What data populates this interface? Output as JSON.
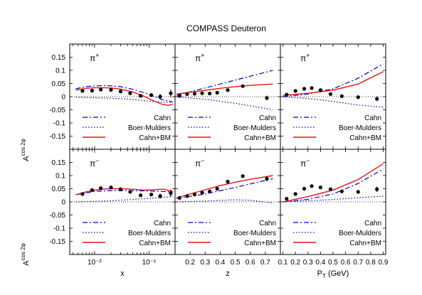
{
  "title": "COMPASS Deuteron",
  "y_axis_label": {
    "base": "A",
    "sup": "cos 2φ"
  },
  "legend": [
    {
      "name": "Cahn",
      "color": "#0000cc",
      "dash": "dashdot"
    },
    {
      "name": "Boer-Mulders",
      "color": "#0000cc",
      "dash": "dot"
    },
    {
      "name": "Cahn+BM",
      "color": "#ee1111",
      "dash": "solid"
    }
  ],
  "chart_data": [
    {
      "type": "line",
      "row": 0,
      "col": 0,
      "hadron": "π+",
      "xlabel": "",
      "xscale": "log",
      "xlim": [
        0.0035,
        0.3
      ],
      "ylim": [
        -0.2,
        0.2
      ],
      "yticks": [
        "0.15",
        "0.1",
        "0.05",
        "0",
        "-0.05",
        "-0.1",
        "-0.15"
      ],
      "points": [
        {
          "x": 0.006,
          "y": 0.022,
          "err": 0.006
        },
        {
          "x": 0.009,
          "y": 0.023,
          "err": 0.005
        },
        {
          "x": 0.013,
          "y": 0.027,
          "err": 0.005
        },
        {
          "x": 0.02,
          "y": 0.026,
          "err": 0.005
        },
        {
          "x": 0.03,
          "y": 0.02,
          "err": 0.005
        },
        {
          "x": 0.045,
          "y": 0.013,
          "err": 0.005
        },
        {
          "x": 0.07,
          "y": 0.003,
          "err": 0.005
        },
        {
          "x": 0.11,
          "y": 0.006,
          "err": 0.007
        },
        {
          "x": 0.16,
          "y": 0.0,
          "err": 0.01
        },
        {
          "x": 0.25,
          "y": 0.013,
          "err": 0.015
        }
      ],
      "series": [
        {
          "name": "Cahn",
          "x": [
            0.0045,
            0.007,
            0.01,
            0.015,
            0.02,
            0.03,
            0.05,
            0.08,
            0.12,
            0.18,
            0.27
          ],
          "y": [
            0.03,
            0.038,
            0.041,
            0.042,
            0.041,
            0.038,
            0.028,
            0.015,
            0.002,
            -0.012,
            -0.02
          ]
        },
        {
          "name": "Boer-Mulders",
          "x": [
            0.0045,
            0.01,
            0.02,
            0.04,
            0.08,
            0.15,
            0.27
          ],
          "y": [
            -0.002,
            -0.004,
            -0.006,
            -0.009,
            -0.015,
            -0.02,
            -0.022
          ]
        },
        {
          "name": "Cahn+BM",
          "x": [
            0.0045,
            0.007,
            0.01,
            0.015,
            0.02,
            0.03,
            0.05,
            0.08,
            0.12,
            0.18,
            0.23,
            0.27
          ],
          "y": [
            0.025,
            0.032,
            0.034,
            0.034,
            0.033,
            0.029,
            0.018,
            0.002,
            -0.016,
            -0.03,
            -0.033,
            -0.028
          ]
        }
      ]
    },
    {
      "type": "line",
      "row": 0,
      "col": 1,
      "hadron": "π+",
      "xlabel": "",
      "xscale": "linear",
      "xlim": [
        0.1,
        0.8
      ],
      "ylim": [
        -0.2,
        0.2
      ],
      "points": [
        {
          "x": 0.13,
          "y": 0.003,
          "err": 0.004
        },
        {
          "x": 0.18,
          "y": 0.01,
          "err": 0.004
        },
        {
          "x": 0.23,
          "y": 0.011,
          "err": 0.004
        },
        {
          "x": 0.28,
          "y": 0.013,
          "err": 0.004
        },
        {
          "x": 0.33,
          "y": 0.012,
          "err": 0.005
        },
        {
          "x": 0.38,
          "y": 0.015,
          "err": 0.005
        },
        {
          "x": 0.45,
          "y": 0.025,
          "err": 0.005
        },
        {
          "x": 0.55,
          "y": 0.04,
          "err": 0.006
        },
        {
          "x": 0.71,
          "y": -0.005,
          "err": 0.009
        }
      ],
      "series": [
        {
          "name": "Cahn",
          "x": [
            0.11,
            0.75
          ],
          "y": [
            0.005,
            0.1
          ]
        },
        {
          "name": "Boer-Mulders",
          "x": [
            0.11,
            0.3,
            0.5,
            0.75
          ],
          "y": [
            0.0,
            -0.01,
            -0.025,
            -0.05
          ]
        },
        {
          "name": "Cahn+BM",
          "x": [
            0.11,
            0.2,
            0.3,
            0.4,
            0.5,
            0.6,
            0.75
          ],
          "y": [
            0.01,
            0.017,
            0.024,
            0.032,
            0.038,
            0.043,
            0.048
          ]
        }
      ]
    },
    {
      "type": "line",
      "row": 0,
      "col": 2,
      "hadron": "π+",
      "xlabel": "",
      "xscale": "linear",
      "xlim": [
        0.08,
        0.92
      ],
      "ylim": [
        -0.2,
        0.2
      ],
      "points": [
        {
          "x": 0.13,
          "y": 0.008,
          "err": 0.004
        },
        {
          "x": 0.2,
          "y": 0.022,
          "err": 0.004
        },
        {
          "x": 0.27,
          "y": 0.03,
          "err": 0.004
        },
        {
          "x": 0.33,
          "y": 0.033,
          "err": 0.005
        },
        {
          "x": 0.4,
          "y": 0.025,
          "err": 0.005
        },
        {
          "x": 0.48,
          "y": 0.01,
          "err": 0.005
        },
        {
          "x": 0.57,
          "y": 0.002,
          "err": 0.006
        },
        {
          "x": 0.7,
          "y": -0.002,
          "err": 0.007
        },
        {
          "x": 0.85,
          "y": -0.008,
          "err": 0.009
        }
      ],
      "series": [
        {
          "name": "Cahn",
          "x": [
            0.1,
            0.3,
            0.5,
            0.7,
            0.9
          ],
          "y": [
            0.0,
            0.01,
            0.03,
            0.07,
            0.125
          ]
        },
        {
          "name": "Boer-Mulders",
          "x": [
            0.1,
            0.3,
            0.5,
            0.7,
            0.9
          ],
          "y": [
            0.0,
            -0.007,
            -0.018,
            -0.032,
            -0.04
          ]
        },
        {
          "name": "Cahn+BM",
          "x": [
            0.1,
            0.3,
            0.5,
            0.7,
            0.9
          ],
          "y": [
            0.005,
            0.013,
            0.025,
            0.048,
            0.095
          ]
        }
      ]
    },
    {
      "type": "line",
      "row": 1,
      "col": 0,
      "hadron": "π−",
      "xlabel": "x",
      "xscale": "log",
      "xlim": [
        0.0035,
        0.3
      ],
      "ylim": [
        -0.2,
        0.2
      ],
      "xticks": [
        {
          "value": 0.01,
          "label": "10⁻²"
        },
        {
          "value": 0.1,
          "label": "10⁻¹"
        }
      ],
      "yticks": [
        "0.15",
        "0.1",
        "0.05",
        "0",
        "-0.05",
        "-0.1",
        "-0.15"
      ],
      "points": [
        {
          "x": 0.006,
          "y": 0.03,
          "err": 0.006
        },
        {
          "x": 0.009,
          "y": 0.045,
          "err": 0.005
        },
        {
          "x": 0.013,
          "y": 0.052,
          "err": 0.005
        },
        {
          "x": 0.02,
          "y": 0.055,
          "err": 0.005
        },
        {
          "x": 0.03,
          "y": 0.048,
          "err": 0.005
        },
        {
          "x": 0.045,
          "y": 0.038,
          "err": 0.005
        },
        {
          "x": 0.07,
          "y": 0.025,
          "err": 0.006
        },
        {
          "x": 0.11,
          "y": 0.028,
          "err": 0.007
        },
        {
          "x": 0.16,
          "y": 0.022,
          "err": 0.009
        },
        {
          "x": 0.25,
          "y": 0.033,
          "err": 0.014
        }
      ],
      "series": [
        {
          "name": "Cahn",
          "x": [
            0.0045,
            0.01,
            0.02,
            0.04,
            0.08,
            0.15,
            0.27
          ],
          "y": [
            0.027,
            0.04,
            0.043,
            0.043,
            0.042,
            0.04,
            0.038
          ]
        },
        {
          "name": "Boer-Mulders",
          "x": [
            0.0045,
            0.01,
            0.02,
            0.04,
            0.08,
            0.15,
            0.27
          ],
          "y": [
            0.0,
            0.002,
            0.004,
            0.008,
            0.012,
            0.016,
            0.02
          ]
        },
        {
          "name": "Cahn+BM",
          "x": [
            0.0045,
            0.007,
            0.01,
            0.015,
            0.02,
            0.03,
            0.05,
            0.08,
            0.12,
            0.18,
            0.27
          ],
          "y": [
            0.027,
            0.038,
            0.045,
            0.049,
            0.05,
            0.05,
            0.048,
            0.045,
            0.046,
            0.048,
            0.04
          ]
        }
      ]
    },
    {
      "type": "line",
      "row": 1,
      "col": 1,
      "hadron": "π−",
      "xlabel": "z",
      "xscale": "linear",
      "xlim": [
        0.1,
        0.8
      ],
      "ylim": [
        -0.2,
        0.2
      ],
      "xticks": [
        {
          "value": 0.2,
          "label": "0.2"
        },
        {
          "value": 0.3,
          "label": "0.3"
        },
        {
          "value": 0.4,
          "label": "0.4"
        },
        {
          "value": 0.5,
          "label": "0.5"
        },
        {
          "value": 0.6,
          "label": "0.6"
        },
        {
          "value": 0.7,
          "label": "0.7"
        }
      ],
      "points": [
        {
          "x": 0.13,
          "y": 0.015,
          "err": 0.004
        },
        {
          "x": 0.18,
          "y": 0.022,
          "err": 0.004
        },
        {
          "x": 0.23,
          "y": 0.028,
          "err": 0.004
        },
        {
          "x": 0.28,
          "y": 0.035,
          "err": 0.005
        },
        {
          "x": 0.33,
          "y": 0.04,
          "err": 0.005
        },
        {
          "x": 0.38,
          "y": 0.05,
          "err": 0.005
        },
        {
          "x": 0.45,
          "y": 0.077,
          "err": 0.006
        },
        {
          "x": 0.55,
          "y": 0.098,
          "err": 0.007
        },
        {
          "x": 0.71,
          "y": 0.088,
          "err": 0.01
        }
      ],
      "series": [
        {
          "name": "Cahn",
          "x": [
            0.11,
            0.3,
            0.5,
            0.75
          ],
          "y": [
            0.013,
            0.03,
            0.055,
            0.088
          ]
        },
        {
          "name": "Boer-Mulders",
          "x": [
            0.11,
            0.3,
            0.5,
            0.6,
            0.75
          ],
          "y": [
            0.0,
            0.003,
            0.008,
            0.006,
            -0.004
          ]
        },
        {
          "name": "Cahn+BM",
          "x": [
            0.11,
            0.2,
            0.3,
            0.4,
            0.5,
            0.6,
            0.75
          ],
          "y": [
            0.015,
            0.03,
            0.046,
            0.062,
            0.075,
            0.086,
            0.1
          ]
        }
      ]
    },
    {
      "type": "line",
      "row": 1,
      "col": 2,
      "hadron": "π−",
      "xlabel": "P_T (GeV)",
      "xscale": "linear",
      "xlim": [
        0.08,
        0.92
      ],
      "ylim": [
        -0.2,
        0.2
      ],
      "xticks": [
        {
          "value": 0.1,
          "label": "0.1"
        },
        {
          "value": 0.2,
          "label": "0.2"
        },
        {
          "value": 0.3,
          "label": "0.3"
        },
        {
          "value": 0.4,
          "label": "0.4"
        },
        {
          "value": 0.5,
          "label": "0.5"
        },
        {
          "value": 0.6,
          "label": "0.6"
        },
        {
          "value": 0.7,
          "label": "0.7"
        },
        {
          "value": 0.8,
          "label": "0.8"
        },
        {
          "value": 0.9,
          "label": "0.9"
        }
      ],
      "points": [
        {
          "x": 0.13,
          "y": 0.012,
          "err": 0.004
        },
        {
          "x": 0.2,
          "y": 0.03,
          "err": 0.004
        },
        {
          "x": 0.27,
          "y": 0.05,
          "err": 0.005
        },
        {
          "x": 0.33,
          "y": 0.06,
          "err": 0.005
        },
        {
          "x": 0.4,
          "y": 0.055,
          "err": 0.005
        },
        {
          "x": 0.48,
          "y": 0.048,
          "err": 0.006
        },
        {
          "x": 0.57,
          "y": 0.04,
          "err": 0.007
        },
        {
          "x": 0.7,
          "y": 0.038,
          "err": 0.008
        },
        {
          "x": 0.85,
          "y": 0.048,
          "err": 0.01
        }
      ],
      "series": [
        {
          "name": "Cahn",
          "x": [
            0.1,
            0.3,
            0.5,
            0.7,
            0.9
          ],
          "y": [
            0.0,
            0.01,
            0.03,
            0.07,
            0.125
          ]
        },
        {
          "name": "Boer-Mulders",
          "x": [
            0.1,
            0.3,
            0.5,
            0.7,
            0.9
          ],
          "y": [
            0.0,
            0.004,
            0.009,
            0.016,
            0.022
          ]
        },
        {
          "name": "Cahn+BM",
          "x": [
            0.1,
            0.3,
            0.5,
            0.7,
            0.9
          ],
          "y": [
            0.0,
            0.02,
            0.045,
            0.085,
            0.145
          ]
        }
      ]
    }
  ]
}
